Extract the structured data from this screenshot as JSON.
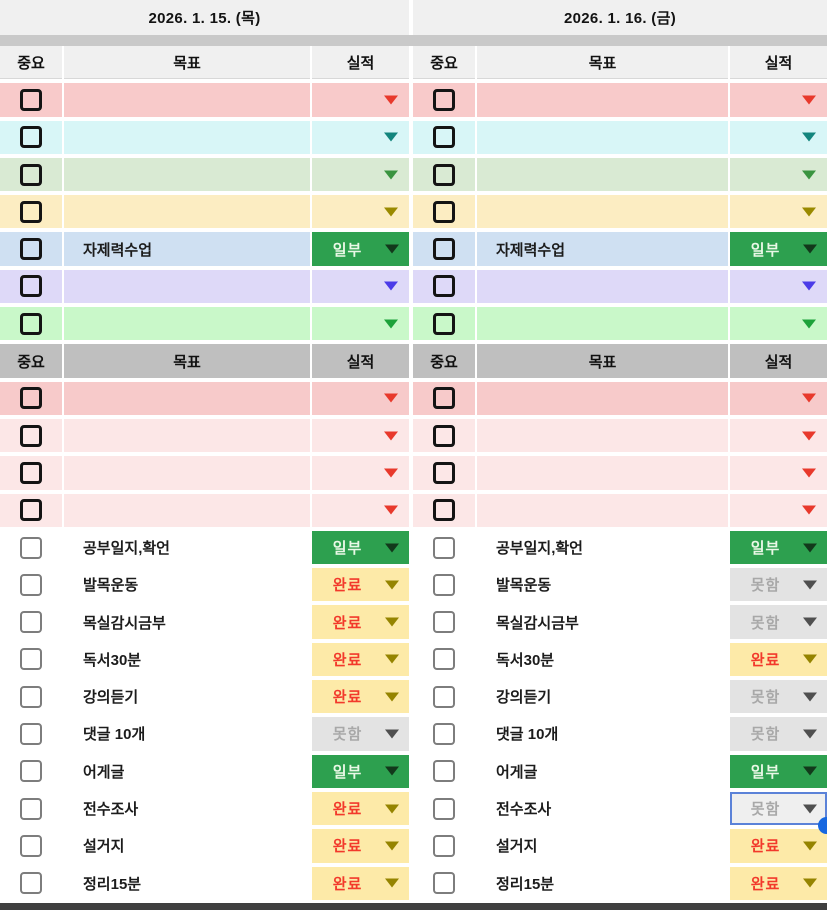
{
  "column_headers": {
    "important": "중요",
    "goal": "목표",
    "result": "실적"
  },
  "statuses": {
    "ilbu": {
      "label": "일부",
      "bg": "#2da04f",
      "text_color": "#e9f8e6",
      "arrow": "#12391b"
    },
    "wanryo": {
      "label": "완료",
      "bg": "#fdeaa8",
      "text_color": "#f2392b",
      "arrow": "#958400"
    },
    "motham": {
      "label": "못함",
      "bg": "#e3e3e3",
      "text_color": "#a8a8a8",
      "arrow": "#4f4f4f"
    }
  },
  "selection": {
    "border": "#5b82d8",
    "handle": "#1667e0",
    "bg": "#efefef"
  },
  "days": [
    {
      "date": "2026. 1. 15. (목)",
      "rows": [
        {
          "type": "item",
          "bg": "#f8caca",
          "cb": "bold",
          "goal": "",
          "status": {
            "kind": "arrow",
            "color": "#e8392c"
          }
        },
        {
          "type": "item",
          "bg": "#d8f6f7",
          "cb": "bold",
          "goal": "",
          "status": {
            "kind": "arrow",
            "color": "#13857d"
          }
        },
        {
          "type": "item",
          "bg": "#d9ead3",
          "cb": "bold",
          "goal": "",
          "status": {
            "kind": "arrow",
            "color": "#3a9440"
          }
        },
        {
          "type": "item",
          "bg": "#fcedc2",
          "cb": "bold",
          "goal": "",
          "status": {
            "kind": "arrow",
            "color": "#9a8a00"
          }
        },
        {
          "type": "item",
          "bg": "#cfe0f2",
          "cb": "bold",
          "goal": "자제력수업",
          "status": {
            "kind": "badge",
            "status": "ilbu"
          }
        },
        {
          "type": "item",
          "bg": "#ded9f8",
          "cb": "bold",
          "goal": "",
          "status": {
            "kind": "arrow",
            "color": "#4b3be8"
          }
        },
        {
          "type": "item",
          "bg": "#c9f8c9",
          "cb": "bold",
          "goal": "",
          "status": {
            "kind": "arrow",
            "color": "#1da23a"
          }
        },
        {
          "type": "header"
        },
        {
          "type": "item",
          "bg": "#f7caca",
          "cb": "bold",
          "goal": "",
          "status": {
            "kind": "arrow",
            "color": "#e8392c"
          }
        },
        {
          "type": "item",
          "bg": "#fce7e7",
          "cb": "bold",
          "goal": "",
          "status": {
            "kind": "arrow",
            "color": "#e8392c"
          }
        },
        {
          "type": "item",
          "bg": "#fce7e7",
          "cb": "bold",
          "goal": "",
          "status": {
            "kind": "arrow",
            "color": "#e8392c"
          }
        },
        {
          "type": "item",
          "bg": "#fce7e7",
          "cb": "bold",
          "goal": "",
          "status": {
            "kind": "arrow",
            "color": "#e8392c"
          }
        },
        {
          "type": "item",
          "bg": "#ffffff",
          "cb": "light",
          "goal": "공부일지,확언",
          "status": {
            "kind": "badge",
            "status": "ilbu"
          }
        },
        {
          "type": "item",
          "bg": "#ffffff",
          "cb": "light",
          "goal": "발목운동",
          "status": {
            "kind": "badge",
            "status": "wanryo"
          }
        },
        {
          "type": "item",
          "bg": "#ffffff",
          "cb": "light",
          "goal": "목실감시금부",
          "status": {
            "kind": "badge",
            "status": "wanryo"
          }
        },
        {
          "type": "item",
          "bg": "#ffffff",
          "cb": "light",
          "goal": "독서30분",
          "status": {
            "kind": "badge",
            "status": "wanryo"
          }
        },
        {
          "type": "item",
          "bg": "#ffffff",
          "cb": "light",
          "goal": "강의듣기",
          "status": {
            "kind": "badge",
            "status": "wanryo"
          }
        },
        {
          "type": "item",
          "bg": "#ffffff",
          "cb": "light",
          "goal": "댓글 10개",
          "status": {
            "kind": "badge",
            "status": "motham"
          }
        },
        {
          "type": "item",
          "bg": "#ffffff",
          "cb": "light",
          "goal": "어게글",
          "status": {
            "kind": "badge",
            "status": "ilbu"
          }
        },
        {
          "type": "item",
          "bg": "#ffffff",
          "cb": "light",
          "goal": "전수조사",
          "status": {
            "kind": "badge",
            "status": "wanryo"
          }
        },
        {
          "type": "item",
          "bg": "#ffffff",
          "cb": "light",
          "goal": "설거지",
          "status": {
            "kind": "badge",
            "status": "wanryo"
          }
        },
        {
          "type": "item",
          "bg": "#ffffff",
          "cb": "light",
          "goal": "정리15분",
          "status": {
            "kind": "badge",
            "status": "wanryo"
          }
        }
      ]
    },
    {
      "date": "2026. 1. 16. (금)",
      "rows": [
        {
          "type": "item",
          "bg": "#f8caca",
          "cb": "bold",
          "goal": "",
          "status": {
            "kind": "arrow",
            "color": "#e8392c"
          }
        },
        {
          "type": "item",
          "bg": "#d8f6f7",
          "cb": "bold",
          "goal": "",
          "status": {
            "kind": "arrow",
            "color": "#13857d"
          }
        },
        {
          "type": "item",
          "bg": "#d9ead3",
          "cb": "bold",
          "goal": "",
          "status": {
            "kind": "arrow",
            "color": "#3a9440"
          }
        },
        {
          "type": "item",
          "bg": "#fcedc2",
          "cb": "bold",
          "goal": "",
          "status": {
            "kind": "arrow",
            "color": "#9a8a00"
          }
        },
        {
          "type": "item",
          "bg": "#cfe0f2",
          "cb": "bold",
          "goal": "자제력수업",
          "status": {
            "kind": "badge",
            "status": "ilbu"
          }
        },
        {
          "type": "item",
          "bg": "#ded9f8",
          "cb": "bold",
          "goal": "",
          "status": {
            "kind": "arrow",
            "color": "#4b3be8"
          }
        },
        {
          "type": "item",
          "bg": "#c9f8c9",
          "cb": "bold",
          "goal": "",
          "status": {
            "kind": "arrow",
            "color": "#1da23a"
          }
        },
        {
          "type": "header"
        },
        {
          "type": "item",
          "bg": "#f7caca",
          "cb": "bold",
          "goal": "",
          "status": {
            "kind": "arrow",
            "color": "#e8392c"
          }
        },
        {
          "type": "item",
          "bg": "#fce7e7",
          "cb": "bold",
          "goal": "",
          "status": {
            "kind": "arrow",
            "color": "#e8392c"
          }
        },
        {
          "type": "item",
          "bg": "#fce7e7",
          "cb": "bold",
          "goal": "",
          "status": {
            "kind": "arrow",
            "color": "#e8392c"
          }
        },
        {
          "type": "item",
          "bg": "#fce7e7",
          "cb": "bold",
          "goal": "",
          "status": {
            "kind": "arrow",
            "color": "#e8392c"
          }
        },
        {
          "type": "item",
          "bg": "#ffffff",
          "cb": "light",
          "goal": "공부일지,확언",
          "status": {
            "kind": "badge",
            "status": "ilbu"
          }
        },
        {
          "type": "item",
          "bg": "#ffffff",
          "cb": "light",
          "goal": "발목운동",
          "status": {
            "kind": "badge",
            "status": "motham"
          }
        },
        {
          "type": "item",
          "bg": "#ffffff",
          "cb": "light",
          "goal": "목실감시금부",
          "status": {
            "kind": "badge",
            "status": "motham"
          }
        },
        {
          "type": "item",
          "bg": "#ffffff",
          "cb": "light",
          "goal": "독서30분",
          "status": {
            "kind": "badge",
            "status": "wanryo"
          }
        },
        {
          "type": "item",
          "bg": "#ffffff",
          "cb": "light",
          "goal": "강의듣기",
          "status": {
            "kind": "badge",
            "status": "motham"
          }
        },
        {
          "type": "item",
          "bg": "#ffffff",
          "cb": "light",
          "goal": "댓글 10개",
          "status": {
            "kind": "badge",
            "status": "motham"
          }
        },
        {
          "type": "item",
          "bg": "#ffffff",
          "cb": "light",
          "goal": "어게글",
          "status": {
            "kind": "badge",
            "status": "ilbu"
          }
        },
        {
          "type": "item",
          "bg": "#ffffff",
          "cb": "light",
          "goal": "전수조사",
          "status": {
            "kind": "badge",
            "status": "motham"
          },
          "selected": true
        },
        {
          "type": "item",
          "bg": "#ffffff",
          "cb": "light",
          "goal": "설거지",
          "status": {
            "kind": "badge",
            "status": "wanryo"
          }
        },
        {
          "type": "item",
          "bg": "#ffffff",
          "cb": "light",
          "goal": "정리15분",
          "status": {
            "kind": "badge",
            "status": "wanryo"
          }
        }
      ]
    }
  ]
}
